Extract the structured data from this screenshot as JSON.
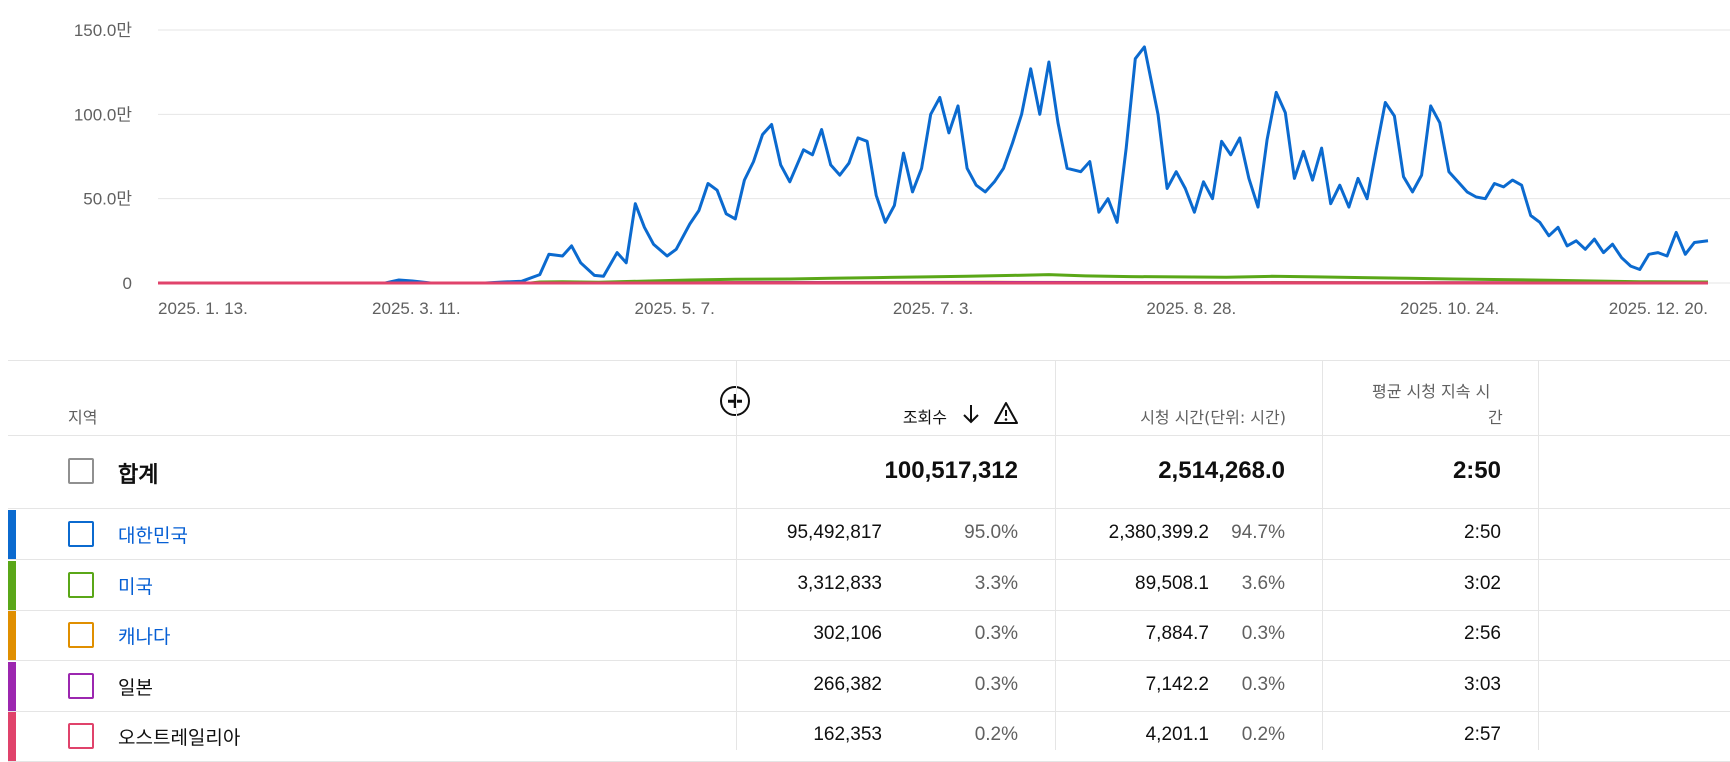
{
  "chart_data": {
    "type": "line",
    "title": "",
    "xlabel": "",
    "ylabel": "",
    "ylim": [
      0,
      1500000
    ],
    "y_ticks": [
      "0",
      "50.0만",
      "100.0만",
      "150.0만"
    ],
    "x_ticks": [
      "2025. 1. 13.",
      "2025. 3. 11.",
      "2025. 5. 7.",
      "2025. 7. 3.",
      "2025. 8. 28.",
      "2025. 10. 24.",
      "2025. 12. 20."
    ],
    "x_start": "2025-01-13",
    "x_end": "2025-12-20",
    "grid": true,
    "series": [
      {
        "name": "대한민국",
        "color": "#0b6acf",
        "points": [
          [
            "2025-01-13",
            0
          ],
          [
            "2025-03-04",
            0
          ],
          [
            "2025-03-07",
            18000
          ],
          [
            "2025-03-10",
            12000
          ],
          [
            "2025-03-14",
            0
          ],
          [
            "2025-03-26",
            0
          ],
          [
            "2025-03-30",
            6000
          ],
          [
            "2025-04-03",
            10000
          ],
          [
            "2025-04-07",
            50000
          ],
          [
            "2025-04-09",
            170000
          ],
          [
            "2025-04-12",
            160000
          ],
          [
            "2025-04-14",
            220000
          ],
          [
            "2025-04-16",
            120000
          ],
          [
            "2025-04-19",
            45000
          ],
          [
            "2025-04-21",
            40000
          ],
          [
            "2025-04-24",
            180000
          ],
          [
            "2025-04-26",
            120000
          ],
          [
            "2025-04-28",
            470000
          ],
          [
            "2025-04-30",
            330000
          ],
          [
            "2025-05-02",
            230000
          ],
          [
            "2025-05-05",
            160000
          ],
          [
            "2025-05-07",
            200000
          ],
          [
            "2025-05-10",
            350000
          ],
          [
            "2025-05-12",
            430000
          ],
          [
            "2025-05-14",
            590000
          ],
          [
            "2025-05-16",
            550000
          ],
          [
            "2025-05-18",
            410000
          ],
          [
            "2025-05-20",
            380000
          ],
          [
            "2025-05-22",
            610000
          ],
          [
            "2025-05-24",
            720000
          ],
          [
            "2025-05-26",
            880000
          ],
          [
            "2025-05-28",
            940000
          ],
          [
            "2025-05-30",
            700000
          ],
          [
            "2025-06-01",
            600000
          ],
          [
            "2025-06-04",
            790000
          ],
          [
            "2025-06-06",
            760000
          ],
          [
            "2025-06-08",
            910000
          ],
          [
            "2025-06-10",
            700000
          ],
          [
            "2025-06-12",
            640000
          ],
          [
            "2025-06-14",
            710000
          ],
          [
            "2025-06-16",
            860000
          ],
          [
            "2025-06-18",
            840000
          ],
          [
            "2025-06-20",
            520000
          ],
          [
            "2025-06-22",
            360000
          ],
          [
            "2025-06-24",
            460000
          ],
          [
            "2025-06-26",
            770000
          ],
          [
            "2025-06-28",
            540000
          ],
          [
            "2025-06-30",
            680000
          ],
          [
            "2025-07-02",
            1000000
          ],
          [
            "2025-07-04",
            1100000
          ],
          [
            "2025-07-06",
            890000
          ],
          [
            "2025-07-08",
            1050000
          ],
          [
            "2025-07-10",
            680000
          ],
          [
            "2025-07-12",
            580000
          ],
          [
            "2025-07-14",
            540000
          ],
          [
            "2025-07-16",
            600000
          ],
          [
            "2025-07-18",
            680000
          ],
          [
            "2025-07-20",
            830000
          ],
          [
            "2025-07-22",
            1000000
          ],
          [
            "2025-07-24",
            1270000
          ],
          [
            "2025-07-26",
            1000000
          ],
          [
            "2025-07-28",
            1310000
          ],
          [
            "2025-07-30",
            950000
          ],
          [
            "2025-08-01",
            680000
          ],
          [
            "2025-08-04",
            660000
          ],
          [
            "2025-08-06",
            720000
          ],
          [
            "2025-08-08",
            420000
          ],
          [
            "2025-08-10",
            500000
          ],
          [
            "2025-08-12",
            360000
          ],
          [
            "2025-08-14",
            800000
          ],
          [
            "2025-08-16",
            1330000
          ],
          [
            "2025-08-18",
            1400000
          ],
          [
            "2025-08-21",
            1000000
          ],
          [
            "2025-08-23",
            560000
          ],
          [
            "2025-08-25",
            660000
          ],
          [
            "2025-08-27",
            560000
          ],
          [
            "2025-08-29",
            420000
          ],
          [
            "2025-08-31",
            600000
          ],
          [
            "2025-09-02",
            500000
          ],
          [
            "2025-09-04",
            840000
          ],
          [
            "2025-09-06",
            760000
          ],
          [
            "2025-09-08",
            860000
          ],
          [
            "2025-09-10",
            620000
          ],
          [
            "2025-09-12",
            450000
          ],
          [
            "2025-09-14",
            850000
          ],
          [
            "2025-09-16",
            1130000
          ],
          [
            "2025-09-18",
            1010000
          ],
          [
            "2025-09-20",
            620000
          ],
          [
            "2025-09-22",
            780000
          ],
          [
            "2025-09-24",
            610000
          ],
          [
            "2025-09-26",
            800000
          ],
          [
            "2025-09-28",
            470000
          ],
          [
            "2025-09-30",
            580000
          ],
          [
            "2025-10-02",
            450000
          ],
          [
            "2025-10-04",
            620000
          ],
          [
            "2025-10-06",
            500000
          ],
          [
            "2025-10-08",
            790000
          ],
          [
            "2025-10-10",
            1070000
          ],
          [
            "2025-10-12",
            990000
          ],
          [
            "2025-10-14",
            630000
          ],
          [
            "2025-10-16",
            540000
          ],
          [
            "2025-10-18",
            640000
          ],
          [
            "2025-10-20",
            1050000
          ],
          [
            "2025-10-22",
            950000
          ],
          [
            "2025-10-24",
            660000
          ],
          [
            "2025-10-26",
            600000
          ],
          [
            "2025-10-28",
            540000
          ],
          [
            "2025-10-30",
            510000
          ],
          [
            "2025-11-01",
            500000
          ],
          [
            "2025-11-03",
            590000
          ],
          [
            "2025-11-05",
            570000
          ],
          [
            "2025-11-07",
            610000
          ],
          [
            "2025-11-09",
            580000
          ],
          [
            "2025-11-11",
            400000
          ],
          [
            "2025-11-13",
            360000
          ],
          [
            "2025-11-15",
            280000
          ],
          [
            "2025-11-17",
            330000
          ],
          [
            "2025-11-19",
            220000
          ],
          [
            "2025-11-21",
            250000
          ],
          [
            "2025-11-23",
            200000
          ],
          [
            "2025-11-25",
            260000
          ],
          [
            "2025-11-27",
            180000
          ],
          [
            "2025-11-29",
            230000
          ],
          [
            "2025-12-01",
            150000
          ],
          [
            "2025-12-03",
            100000
          ],
          [
            "2025-12-05",
            80000
          ],
          [
            "2025-12-07",
            170000
          ],
          [
            "2025-12-09",
            180000
          ],
          [
            "2025-12-11",
            160000
          ],
          [
            "2025-12-13",
            300000
          ],
          [
            "2025-12-15",
            170000
          ],
          [
            "2025-12-17",
            240000
          ],
          [
            "2025-12-20",
            250000
          ]
        ]
      },
      {
        "name": "미국",
        "color": "#5aa718",
        "points": [
          [
            "2025-01-13",
            0
          ],
          [
            "2025-04-05",
            0
          ],
          [
            "2025-04-07",
            6000
          ],
          [
            "2025-04-12",
            8000
          ],
          [
            "2025-04-20",
            5000
          ],
          [
            "2025-05-01",
            12000
          ],
          [
            "2025-05-10",
            18000
          ],
          [
            "2025-05-20",
            22000
          ],
          [
            "2025-06-01",
            24000
          ],
          [
            "2025-06-10",
            28000
          ],
          [
            "2025-06-20",
            32000
          ],
          [
            "2025-07-01",
            36000
          ],
          [
            "2025-07-10",
            40000
          ],
          [
            "2025-07-20",
            45000
          ],
          [
            "2025-07-28",
            50000
          ],
          [
            "2025-08-05",
            42000
          ],
          [
            "2025-08-15",
            38000
          ],
          [
            "2025-08-25",
            36000
          ],
          [
            "2025-09-05",
            34000
          ],
          [
            "2025-09-15",
            40000
          ],
          [
            "2025-09-25",
            36000
          ],
          [
            "2025-10-05",
            32000
          ],
          [
            "2025-10-15",
            28000
          ],
          [
            "2025-10-25",
            24000
          ],
          [
            "2025-11-05",
            20000
          ],
          [
            "2025-11-15",
            16000
          ],
          [
            "2025-11-25",
            12000
          ],
          [
            "2025-12-05",
            8000
          ],
          [
            "2025-12-20",
            6000
          ]
        ]
      },
      {
        "name": "캐나다",
        "color": "#e08f00",
        "points": [
          [
            "2025-01-13",
            0
          ],
          [
            "2025-04-10",
            0
          ],
          [
            "2025-05-01",
            2000
          ],
          [
            "2025-06-01",
            3000
          ],
          [
            "2025-07-15",
            4000
          ],
          [
            "2025-09-01",
            3000
          ],
          [
            "2025-10-15",
            2000
          ],
          [
            "2025-12-20",
            1000
          ]
        ]
      },
      {
        "name": "일본",
        "color": "#9c27b0",
        "points": [
          [
            "2025-01-13",
            0
          ],
          [
            "2025-04-10",
            0
          ],
          [
            "2025-05-15",
            1500
          ],
          [
            "2025-07-15",
            3000
          ],
          [
            "2025-09-15",
            2000
          ],
          [
            "2025-12-20",
            1000
          ]
        ]
      },
      {
        "name": "오스트레일리아",
        "color": "#e0436b",
        "points": [
          [
            "2025-01-13",
            0
          ],
          [
            "2025-12-20",
            0
          ]
        ]
      }
    ]
  },
  "table": {
    "headers": {
      "region": "지역",
      "views": "조회수",
      "watch_time": "시청 시간(단위: 시간)",
      "avg_duration_line1": "평균 시청 지속 시",
      "avg_duration_line2": "간"
    },
    "total": {
      "label": "합계",
      "views": "100,517,312",
      "watch_time": "2,514,268.0",
      "avg_duration": "2:50"
    },
    "rows": [
      {
        "name": "대한민국",
        "color": "#0b6acf",
        "link": true,
        "views": "95,492,817",
        "views_pct": "95.0%",
        "watch_time": "2,380,399.2",
        "watch_pct": "94.7%",
        "avg_duration": "2:50"
      },
      {
        "name": "미국",
        "color": "#5aa718",
        "link": true,
        "views": "3,312,833",
        "views_pct": "3.3%",
        "watch_time": "89,508.1",
        "watch_pct": "3.6%",
        "avg_duration": "3:02"
      },
      {
        "name": "캐나다",
        "color": "#e08f00",
        "link": true,
        "views": "302,106",
        "views_pct": "0.3%",
        "watch_time": "7,884.7",
        "watch_pct": "0.3%",
        "avg_duration": "2:56"
      },
      {
        "name": "일본",
        "color": "#9c27b0",
        "link": false,
        "views": "266,382",
        "views_pct": "0.3%",
        "watch_time": "7,142.2",
        "watch_pct": "0.3%",
        "avg_duration": "3:03"
      },
      {
        "name": "오스트레일리아",
        "color": "#e0436b",
        "link": false,
        "views": "162,353",
        "views_pct": "0.2%",
        "watch_time": "4,201.1",
        "watch_pct": "0.2%",
        "avg_duration": "2:57"
      }
    ]
  }
}
